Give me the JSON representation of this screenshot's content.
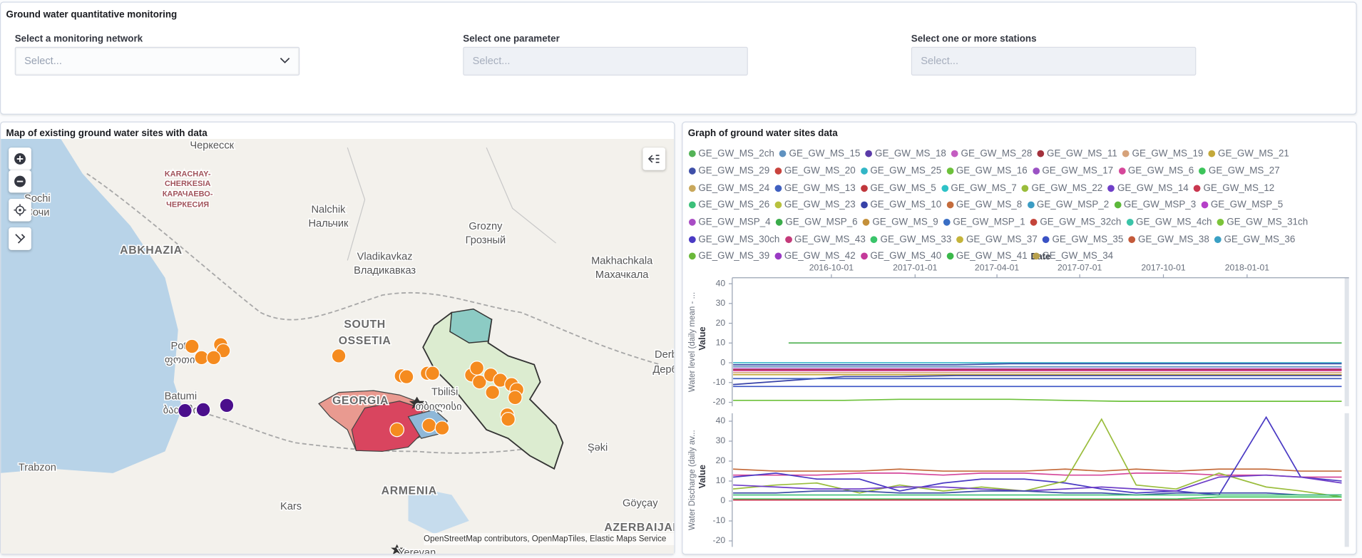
{
  "filters": {
    "title": "Ground water quantitative monitoring",
    "network": {
      "label": "Select a monitoring network",
      "placeholder": "Select..."
    },
    "parameter": {
      "label": "Select one parameter",
      "placeholder": "Select..."
    },
    "stations": {
      "label": "Select one or more stations",
      "placeholder": "Select..."
    }
  },
  "map": {
    "title": "Map of existing ground water sites with data",
    "attribution": "OpenStreetMap contributors, OpenMapTiles, Elastic Maps Service",
    "places": [
      "Черкесск",
      "KARACHAY-",
      "CHERKESIA",
      "КАРАЧАЕВО-",
      "ЧЕРКЕСИЯ",
      "Sochi",
      "Сочи",
      "Nalchik",
      "Нальчик",
      "Grozny",
      "Грозный",
      "ABKHAZIA",
      "Vladikavkaz",
      "Владикавказ",
      "Makhachkala",
      "Махачкала",
      "SOUTH",
      "OSSETIA",
      "Poti",
      "ფოთი",
      "Batumi",
      "ბათუმი",
      "GEORGIA",
      "Tbilisi",
      "თბილისი",
      "Trabzon",
      "Kars",
      "ARMENIA",
      "Şəki",
      "Göyçay",
      "AZERBAIJAN",
      "Yerevan",
      "Derbent",
      "Дербент"
    ]
  },
  "graph": {
    "title": "Graph of ground water sites data",
    "legend": [
      {
        "name": "GE_GW_MS_2ch",
        "color": "#54b357"
      },
      {
        "name": "GE_GW_MS_15",
        "color": "#6092c0"
      },
      {
        "name": "GE_GW_MS_18",
        "color": "#5a3aa8"
      },
      {
        "name": "GE_GW_MS_28",
        "color": "#c45dc1"
      },
      {
        "name": "GE_GW_MS_11",
        "color": "#a3313c"
      },
      {
        "name": "GE_GW_MS_19",
        "color": "#d6a27a"
      },
      {
        "name": "GE_GW_MS_21",
        "color": "#c4a93a"
      },
      {
        "name": "GE_GW_MS_29",
        "color": "#3f4fa8"
      },
      {
        "name": "GE_GW_MS_20",
        "color": "#c9433d"
      },
      {
        "name": "GE_GW_MS_25",
        "color": "#32b6c6"
      },
      {
        "name": "GE_GW_MS_16",
        "color": "#6dc13b"
      },
      {
        "name": "GE_GW_MS_17",
        "color": "#9b52c4"
      },
      {
        "name": "GE_GW_MS_6",
        "color": "#d5479a"
      },
      {
        "name": "GE_GW_MS_27",
        "color": "#3cc45a"
      },
      {
        "name": "GE_GW_MS_24",
        "color": "#c9a85c"
      },
      {
        "name": "GE_GW_MS_13",
        "color": "#4060c0"
      },
      {
        "name": "GE_GW_MS_5",
        "color": "#c0373c"
      },
      {
        "name": "GE_GW_MS_7",
        "color": "#2ec2c7"
      },
      {
        "name": "GE_GW_MS_22",
        "color": "#9abd3c"
      },
      {
        "name": "GE_GW_MS_14",
        "color": "#6f3fc8"
      },
      {
        "name": "GE_GW_MS_12",
        "color": "#c9374f"
      },
      {
        "name": "GE_GW_MS_26",
        "color": "#3cc07a"
      },
      {
        "name": "GE_GW_MS_23",
        "color": "#b8c13e"
      },
      {
        "name": "GE_GW_MS_10",
        "color": "#3742a8"
      },
      {
        "name": "GE_GW_MS_8",
        "color": "#c46c3c"
      },
      {
        "name": "GE_GW_MSP_2",
        "color": "#3b9cc4"
      },
      {
        "name": "GE_GW_MSP_3",
        "color": "#5cb83a"
      },
      {
        "name": "GE_GW_MSP_5",
        "color": "#b540c8"
      },
      {
        "name": "GE_GW_MSP_4",
        "color": "#a84cc4"
      },
      {
        "name": "GE_GW_MSP_6",
        "color": "#3aac4a"
      },
      {
        "name": "GE_GW_MS_9",
        "color": "#c4903a"
      },
      {
        "name": "GE_GW_MSP_1",
        "color": "#3a6ec4"
      },
      {
        "name": "GE_GW_MS_32ch",
        "color": "#c4443a"
      },
      {
        "name": "GE_GW_MS_4ch",
        "color": "#3ac4a8"
      },
      {
        "name": "GE_GW_MS_31ch",
        "color": "#7cc43a"
      },
      {
        "name": "GE_GW_MS_30ch",
        "color": "#4a3ac4"
      },
      {
        "name": "GE_GW_MS_43",
        "color": "#c43a7a"
      },
      {
        "name": "GE_GW_MS_33",
        "color": "#3ac46a"
      },
      {
        "name": "GE_GW_MS_37",
        "color": "#c4b43a"
      },
      {
        "name": "GE_GW_MS_35",
        "color": "#3a52c4"
      },
      {
        "name": "GE_GW_MS_38",
        "color": "#c45a3a"
      },
      {
        "name": "GE_GW_MS_36",
        "color": "#3aa0c4"
      },
      {
        "name": "GE_GW_MS_39",
        "color": "#6ab83a"
      },
      {
        "name": "GE_GW_MS_42",
        "color": "#9a3ac4"
      },
      {
        "name": "GE_GW_MS_40",
        "color": "#c43a9a"
      },
      {
        "name": "GE_GW_MS_41",
        "color": "#3ab84a"
      },
      {
        "name": "GE_GW_MS_34",
        "color": "#b8a04a"
      }
    ]
  },
  "chart_data": [
    {
      "type": "line",
      "group_label": "Water level (daily mean - ...",
      "ylabel": "Value",
      "xlabel": "Date",
      "xlim": [
        "2016-06-14",
        "2018-04-23"
      ],
      "xticks": [
        "2016-10-01",
        "2017-01-01",
        "2017-04-01",
        "2017-07-01",
        "2017-10-01",
        "2018-01-01"
      ],
      "ylim": [
        -22,
        43
      ],
      "yticks": [
        -20,
        -10,
        0,
        10,
        20,
        30,
        40
      ],
      "x": [
        "2016-06-15",
        "2016-08-15",
        "2016-10-15",
        "2016-12-15",
        "2017-02-15",
        "2017-04-15",
        "2017-06-15",
        "2017-08-15",
        "2017-10-15",
        "2017-12-15",
        "2018-02-15",
        "2018-04-15"
      ],
      "series": [
        {
          "name": "GE_GW_MS_2ch",
          "color": "#54b357",
          "values": [
            null,
            10,
            10,
            10,
            10,
            10,
            10,
            10,
            10,
            10,
            10,
            10
          ]
        },
        {
          "name": "GE_GW_MS_25",
          "color": "#32b6c6",
          "values": [
            0,
            0,
            0,
            0,
            0,
            0,
            0,
            0,
            0,
            0,
            0,
            0
          ]
        },
        {
          "name": "GE_GW_MS_29",
          "color": "#3f4fa8",
          "values": [
            -1,
            -1,
            -1,
            -1,
            -1,
            -0.5,
            -0.5,
            -0.5,
            -0.5,
            -0.5,
            -0.5,
            -0.5
          ]
        },
        {
          "name": "GE_GW_MS_15",
          "color": "#6092c0",
          "values": [
            -2,
            -2,
            -2,
            -2,
            -2,
            -2,
            -2,
            -2,
            -2,
            -2,
            -2,
            -2
          ]
        },
        {
          "name": "GE_GW_MS_28",
          "color": "#c45dc1",
          "values": [
            -3,
            -3,
            -3,
            -3,
            -3,
            -3,
            -3,
            -3,
            -3,
            -3,
            -3,
            -3
          ]
        },
        {
          "name": "GE_GW_MS_11",
          "color": "#a3313c",
          "values": [
            -3.5,
            -3.5,
            -3.5,
            -3.5,
            -3.5,
            -3.5,
            -3.5,
            -3.5,
            -3.5,
            -3.5,
            -3.5,
            -3.5
          ]
        },
        {
          "name": "GE_GW_MS_6",
          "color": "#d5479a",
          "values": [
            -4,
            -4,
            -4,
            -4,
            -4,
            -4,
            -4,
            -4,
            -4,
            -4,
            -4,
            -4
          ]
        },
        {
          "name": "GE_GW_MS_19",
          "color": "#d6a27a",
          "values": [
            -5,
            -5,
            -5,
            -5,
            -5,
            -5,
            -5,
            -5,
            -5,
            -5,
            -5,
            -5
          ]
        },
        {
          "name": "GE_GW_MS_21",
          "color": "#c4a93a",
          "values": [
            -6,
            -6,
            -6,
            -6,
            -6,
            -6,
            -6,
            -6,
            -6,
            -6,
            -6,
            -6
          ]
        },
        {
          "name": "GE_GW_MS_10",
          "color": "#3742a8",
          "values": [
            -11,
            -9,
            -7,
            -7,
            -6.5,
            -6.5,
            -6.5,
            -6.5,
            -6.5,
            -6.5,
            -6.5,
            -6.5
          ]
        },
        {
          "name": "GE_GW_MS_13",
          "color": "#4060c0",
          "values": [
            -8,
            -8,
            -8,
            -8,
            -8,
            -8,
            -8,
            -8,
            -8,
            -8,
            -8,
            -8
          ]
        },
        {
          "name": "GE_GW_MS_35",
          "color": "#3a52c4",
          "values": [
            -12,
            -12,
            -12,
            -12,
            -12,
            -12,
            -12,
            -12,
            -12,
            -12,
            -12,
            -12
          ]
        },
        {
          "name": "GE_GW_MS_16",
          "color": "#6dc13b",
          "values": [
            -19,
            -19,
            -19,
            -18.5,
            -18.5,
            -18.5,
            -19,
            -19.5,
            -19.5,
            -19.5,
            -19.5,
            -19.5
          ]
        }
      ]
    },
    {
      "type": "line",
      "group_label": "Water Discharge (daily av...",
      "ylabel": "Value",
      "xlim": [
        "2016-06-14",
        "2018-04-23"
      ],
      "ylim": [
        -23,
        44
      ],
      "yticks": [
        -20,
        -10,
        0,
        10,
        20,
        30,
        40
      ],
      "x": [
        "2016-06-15",
        "2016-08-01",
        "2016-09-15",
        "2016-11-01",
        "2016-12-15",
        "2017-02-01",
        "2017-03-15",
        "2017-05-01",
        "2017-06-15",
        "2017-07-25",
        "2017-09-01",
        "2017-10-15",
        "2017-12-01",
        "2018-01-22",
        "2018-03-01",
        "2018-04-15"
      ],
      "series": [
        {
          "name": "GE_GW_MS_8",
          "color": "#c46c3c",
          "values": [
            16,
            15,
            15,
            15,
            16,
            15,
            15,
            15,
            16,
            15,
            16,
            15,
            16,
            16,
            15,
            15
          ]
        },
        {
          "name": "GE_GW_MS_6",
          "color": "#d5479a",
          "values": [
            13,
            13,
            13,
            14,
            14,
            13,
            14,
            14,
            13,
            13,
            14,
            14,
            13,
            13,
            12,
            12
          ]
        },
        {
          "name": "GE_GW_MS_30ch",
          "color": "#4a3ac4",
          "values": [
            12,
            14,
            11,
            11,
            5,
            9,
            11,
            11,
            9,
            6,
            4,
            5,
            3,
            42,
            12,
            10
          ]
        },
        {
          "name": "GE_GW_MS_22",
          "color": "#9abd3c",
          "values": [
            6,
            8,
            9,
            4,
            8,
            5,
            7,
            5,
            10,
            41,
            8,
            6,
            14,
            7,
            5,
            2
          ]
        },
        {
          "name": "GE_GW_MS_14",
          "color": "#6f3fc8",
          "values": [
            8,
            7,
            6,
            6,
            7,
            7,
            6,
            5,
            6,
            7,
            6,
            5,
            12,
            13,
            12,
            9
          ]
        },
        {
          "name": "GE_GW_MS_29",
          "color": "#3f4fa8",
          "values": [
            4,
            4,
            5,
            5,
            4,
            4,
            5,
            5,
            4,
            4,
            3,
            4,
            4,
            4,
            3,
            3
          ]
        },
        {
          "name": "GE_GW_MS_26",
          "color": "#3cc07a",
          "values": [
            3,
            3,
            3,
            3,
            3,
            3,
            3,
            3,
            3,
            3,
            3,
            3,
            3,
            3,
            3,
            3
          ]
        },
        {
          "name": "GE_GW_MS_27",
          "color": "#3cc45a",
          "values": [
            1,
            1,
            1,
            1,
            1,
            1,
            1,
            1,
            1,
            1,
            1,
            1,
            2,
            2,
            2,
            2
          ]
        },
        {
          "name": "GE_GW_MS_12",
          "color": "#c9374f",
          "values": [
            0.5,
            0.5,
            0.5,
            0.5,
            0.5,
            0.5,
            0.5,
            0.5,
            0.5,
            0.5,
            0.5,
            0.5,
            0.5,
            0.5,
            0.5,
            0.5
          ]
        }
      ]
    }
  ]
}
